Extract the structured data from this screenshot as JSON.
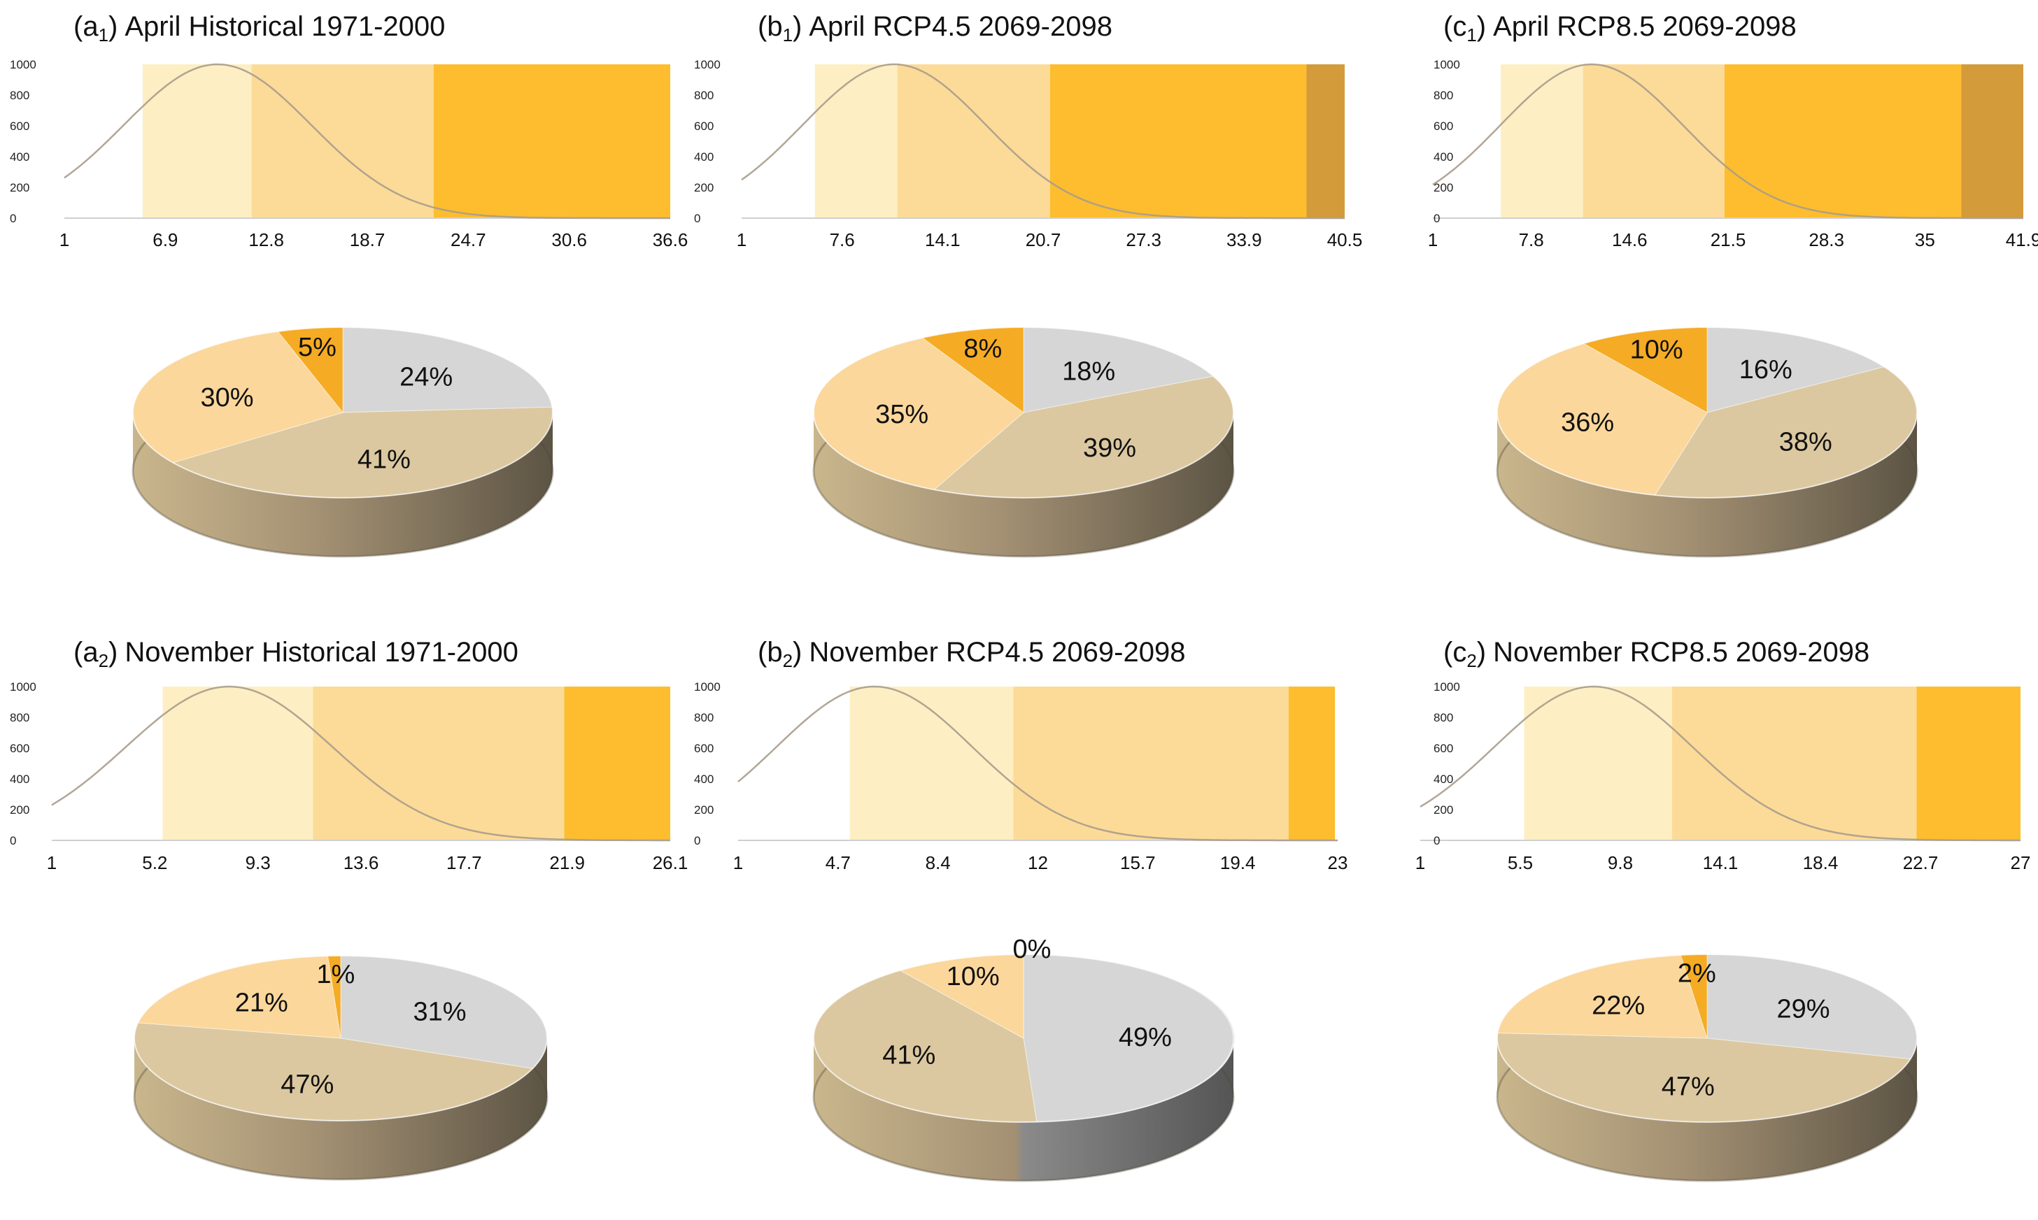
{
  "figure": {
    "panels": [
      {
        "label_letter": "a",
        "label_sub": "1",
        "title": "April Historical 1971-2000"
      },
      {
        "label_letter": "b",
        "label_sub": "1",
        "title": "April RCP4.5 2069-2098"
      },
      {
        "label_letter": "c",
        "label_sub": "1",
        "title": "April RCP8.5 2069-2098"
      },
      {
        "label_letter": "a",
        "label_sub": "2",
        "title": "November Historical 1971-2000"
      },
      {
        "label_letter": "b",
        "label_sub": "2",
        "title": "November RCP4.5 2069-2098"
      },
      {
        "label_letter": "c",
        "label_sub": "2",
        "title": "November RCP8.5 2069-2098"
      }
    ]
  },
  "colors": {
    "class1": "#FDEFC3",
    "class2": "#FCDB98",
    "class3": "#FDBD2E",
    "class4": "#D39B39",
    "curve": "#B8A890",
    "grey": "#D6D6D6",
    "tan": "#DCC8A0",
    "peach": "#FBD79C",
    "orange": "#F5AB24"
  },
  "chart_data": [
    {
      "type": "area",
      "panel": "a1",
      "ylim": [
        0,
        1000
      ],
      "yticks": [
        "1000",
        "800",
        "600",
        "400",
        "200",
        "0"
      ],
      "xlim": [
        1,
        36.6
      ],
      "xticks": [
        "1",
        "6.9",
        "12.8",
        "18.7",
        "24.7",
        "30.6",
        "36.6"
      ],
      "curve": {
        "peak_x": 10,
        "sigma": 5.5,
        "peak_y": 1000
      },
      "bands": [
        {
          "from": 5.6,
          "to": 12.0
        },
        {
          "from": 12.0,
          "to": 22.7
        },
        {
          "from": 22.7,
          "to": 36.6
        }
      ]
    },
    {
      "type": "pie",
      "panel": "a1",
      "slices": [
        {
          "label": "24%",
          "value": 24,
          "color": "grey"
        },
        {
          "label": "41%",
          "value": 41,
          "color": "tan"
        },
        {
          "label": "30%",
          "value": 30,
          "color": "peach"
        },
        {
          "label": "5%",
          "value": 5,
          "color": "orange"
        }
      ]
    },
    {
      "type": "area",
      "panel": "b1",
      "ylim": [
        0,
        1000
      ],
      "yticks": [
        "1000",
        "800",
        "600",
        "400",
        "200",
        "0"
      ],
      "xlim": [
        1,
        40.5
      ],
      "xticks": [
        "1",
        "7.6",
        "14.1",
        "20.7",
        "27.3",
        "33.9",
        "40.5"
      ],
      "curve": {
        "peak_x": 11,
        "sigma": 6.0,
        "peak_y": 1000
      },
      "bands": [
        {
          "from": 5.8,
          "to": 11.2
        },
        {
          "from": 11.2,
          "to": 21.2
        },
        {
          "from": 21.2,
          "to": 38.0
        },
        {
          "from": 38.0,
          "to": 40.5
        }
      ]
    },
    {
      "type": "pie",
      "panel": "b1",
      "slices": [
        {
          "label": "18%",
          "value": 18,
          "color": "grey"
        },
        {
          "label": "39%",
          "value": 39,
          "color": "tan"
        },
        {
          "label": "35%",
          "value": 35,
          "color": "peach"
        },
        {
          "label": "8%",
          "value": 8,
          "color": "orange"
        }
      ]
    },
    {
      "type": "area",
      "panel": "c1",
      "ylim": [
        0,
        1000
      ],
      "yticks": [
        "1000",
        "800",
        "600",
        "400",
        "200",
        "0"
      ],
      "xlim": [
        1,
        41.9
      ],
      "xticks": [
        "1",
        "7.8",
        "14.6",
        "21.5",
        "28.3",
        "35",
        "41.9"
      ],
      "curve": {
        "peak_x": 12,
        "sigma": 6.3,
        "peak_y": 1000
      },
      "bands": [
        {
          "from": 5.7,
          "to": 11.4
        },
        {
          "from": 11.4,
          "to": 21.2
        },
        {
          "from": 21.2,
          "to": 37.6
        },
        {
          "from": 37.6,
          "to": 41.9
        }
      ]
    },
    {
      "type": "pie",
      "panel": "c1",
      "slices": [
        {
          "label": "16%",
          "value": 16,
          "color": "grey"
        },
        {
          "label": "38%",
          "value": 38,
          "color": "tan"
        },
        {
          "label": "36%",
          "value": 36,
          "color": "peach"
        },
        {
          "label": "10%",
          "value": 10,
          "color": "orange"
        }
      ]
    },
    {
      "type": "area",
      "panel": "a2",
      "ylim": [
        0,
        1000
      ],
      "yticks": [
        "1000",
        "800",
        "600",
        "400",
        "200",
        "0"
      ],
      "xlim": [
        1,
        26.1
      ],
      "xticks": [
        "1",
        "5.2",
        "9.3",
        "13.6",
        "17.7",
        "21.9",
        "26.1"
      ],
      "curve": {
        "peak_x": 8.2,
        "sigma": 4.2,
        "peak_y": 1000
      },
      "bands": [
        {
          "from": 5.5,
          "to": 11.6
        },
        {
          "from": 11.6,
          "to": 21.8
        },
        {
          "from": 21.8,
          "to": 26.1
        }
      ]
    },
    {
      "type": "pie",
      "panel": "a2",
      "slices": [
        {
          "label": "31%",
          "value": 31,
          "color": "grey"
        },
        {
          "label": "47%",
          "value": 47,
          "color": "tan"
        },
        {
          "label": "21%",
          "value": 21,
          "color": "peach"
        },
        {
          "label": "1%",
          "value": 1,
          "color": "orange"
        }
      ]
    },
    {
      "type": "area",
      "panel": "b2",
      "ylim": [
        0,
        1000
      ],
      "yticks": [
        "1000",
        "800",
        "600",
        "400",
        "200",
        "0"
      ],
      "xlim": [
        1,
        23
      ],
      "xticks": [
        "1",
        "4.7",
        "8.4",
        "12",
        "15.7",
        "19.4",
        "23"
      ],
      "curve": {
        "peak_x": 6.0,
        "sigma": 3.6,
        "peak_y": 1000
      },
      "bands": [
        {
          "from": 5.1,
          "to": 11.1
        },
        {
          "from": 11.1,
          "to": 21.2
        },
        {
          "from": 21.2,
          "to": 22.9
        }
      ]
    },
    {
      "type": "pie",
      "panel": "b2",
      "slices": [
        {
          "label": "49%",
          "value": 49,
          "color": "grey"
        },
        {
          "label": "41%",
          "value": 41,
          "color": "tan"
        },
        {
          "label": "10%",
          "value": 10,
          "color": "peach"
        },
        {
          "label": "0%",
          "value": 0,
          "color": "orange"
        }
      ]
    },
    {
      "type": "area",
      "panel": "c2",
      "ylim": [
        0,
        1000
      ],
      "yticks": [
        "1000",
        "800",
        "600",
        "400",
        "200",
        "0"
      ],
      "xlim": [
        1,
        27
      ],
      "xticks": [
        "1",
        "5.5",
        "9.8",
        "14.1",
        "18.4",
        "22.7",
        "27"
      ],
      "curve": {
        "peak_x": 8.5,
        "sigma": 4.3,
        "peak_y": 1000
      },
      "bands": [
        {
          "from": 5.5,
          "to": 11.9
        },
        {
          "from": 11.9,
          "to": 22.5
        },
        {
          "from": 22.5,
          "to": 27
        }
      ]
    },
    {
      "type": "pie",
      "panel": "c2",
      "slices": [
        {
          "label": "29%",
          "value": 29,
          "color": "grey"
        },
        {
          "label": "47%",
          "value": 47,
          "color": "tan"
        },
        {
          "label": "22%",
          "value": 22,
          "color": "peach"
        },
        {
          "label": "2%",
          "value": 2,
          "color": "orange"
        }
      ]
    }
  ]
}
